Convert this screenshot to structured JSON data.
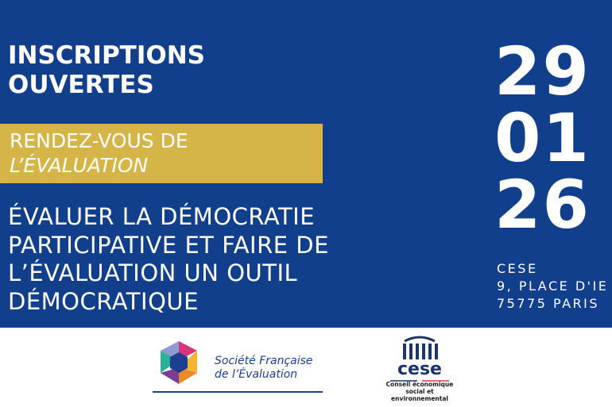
{
  "header": {
    "lines": [
      "INSCRIPTIONS",
      "OUVERTES"
    ]
  },
  "event": {
    "lines": [
      "RENDEZ-VOUS DE",
      "L’ÉVALUATION"
    ]
  },
  "topic": {
    "lines": [
      "ÉVALUER LA DÉMOCRATIE",
      "PARTICIPATIVE ET FAIRE DE",
      "L’ÉVALUATION UN OUTIL",
      "DÉMOCRATIQUE"
    ]
  },
  "date": {
    "day": "29",
    "month": "01",
    "year": "26"
  },
  "address": {
    "lines": [
      "CESE",
      "9, PLACE D'IE",
      "75775 PARIS"
    ]
  },
  "logos": {
    "sfe": [
      "Société Française",
      "de l’Évaluation"
    ],
    "cese": {
      "name": "cese",
      "subtitle": [
        "Conseil économique",
        "social et",
        "environnemental"
      ]
    }
  }
}
